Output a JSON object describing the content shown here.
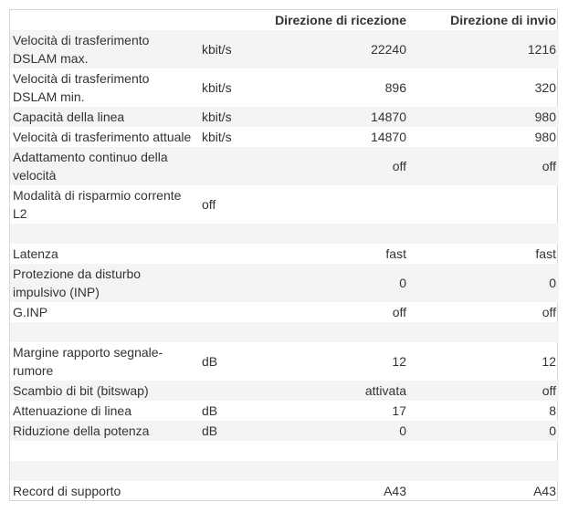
{
  "header": {
    "rx": "Direzione di ricezione",
    "tx": "Direzione di invio"
  },
  "rows": [
    {
      "label": "Velocità di trasferimento DSLAM max.",
      "unit": "kbit/s",
      "rx": "22240",
      "tx": "1216"
    },
    {
      "label": "Velocità di trasferimento DSLAM min.",
      "unit": "kbit/s",
      "rx": "896",
      "tx": "320"
    },
    {
      "label": "Capacità della linea",
      "unit": "kbit/s",
      "rx": "14870",
      "tx": "980"
    },
    {
      "label": "Velocità di trasferimento attuale",
      "unit": "kbit/s",
      "rx": "14870",
      "tx": "980"
    },
    {
      "label": "Adattamento continuo della velocità",
      "unit": "",
      "rx": "off",
      "tx": "off"
    },
    {
      "label": "Modalità di risparmio corrente L2",
      "unit": "off",
      "rx": "",
      "tx": ""
    },
    {
      "label": "",
      "unit": "",
      "rx": "",
      "tx": ""
    },
    {
      "label": "Latenza",
      "unit": "",
      "rx": "fast",
      "tx": "fast"
    },
    {
      "label": "Protezione da disturbo impulsivo (INP)",
      "unit": "",
      "rx": "0",
      "tx": "0"
    },
    {
      "label": "G.INP",
      "unit": "",
      "rx": "off",
      "tx": "off"
    },
    {
      "label": "",
      "unit": "",
      "rx": "",
      "tx": ""
    },
    {
      "label": "Margine rapporto segnale-rumore",
      "unit": "dB",
      "rx": "12",
      "tx": "12"
    },
    {
      "label": "Scambio di bit (bitswap)",
      "unit": "",
      "rx": "attivata",
      "tx": "off"
    },
    {
      "label": "Attenuazione di linea",
      "unit": "dB",
      "rx": "17",
      "tx": "8"
    },
    {
      "label": "Riduzione della potenza",
      "unit": "dB",
      "rx": "0",
      "tx": "0"
    },
    {
      "label": "",
      "unit": "",
      "rx": "",
      "tx": ""
    },
    {
      "label": "",
      "unit": "",
      "rx": "",
      "tx": ""
    },
    {
      "label": "Record di supporto",
      "unit": "",
      "rx": "A43",
      "tx": "A43"
    }
  ]
}
